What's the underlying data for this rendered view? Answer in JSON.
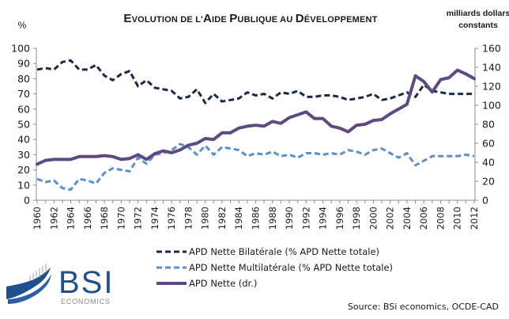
{
  "chart_data": {
    "type": "line",
    "title": "Evolution de l'Aide Publique au Développement",
    "ylabel_left": "%",
    "ylabel_right": "milliards dollars constants",
    "ylabel_right_lines": [
      "milliards dollars",
      "constants"
    ],
    "ylim_left": [
      0,
      100
    ],
    "ylim_right": [
      0,
      160
    ],
    "yticks_left": [
      0,
      10,
      20,
      30,
      40,
      50,
      60,
      70,
      80,
      90,
      100
    ],
    "yticks_right": [
      0,
      20,
      40,
      60,
      80,
      100,
      120,
      140,
      160
    ],
    "xtick_labels": [
      "1960",
      "1962",
      "1964",
      "1966",
      "1968",
      "1970",
      "1972",
      "1974",
      "1976",
      "1978",
      "1980",
      "1982",
      "1984",
      "1986",
      "1988",
      "1990",
      "1992",
      "1994",
      "1996",
      "1998",
      "2000",
      "2002",
      "2004",
      "2006",
      "2008",
      "2010",
      "2012"
    ],
    "grid": false,
    "legend_position": "bottom-center",
    "x": [
      1960,
      1961,
      1962,
      1963,
      1964,
      1965,
      1966,
      1967,
      1968,
      1969,
      1970,
      1971,
      1972,
      1973,
      1974,
      1975,
      1976,
      1977,
      1978,
      1979,
      1980,
      1981,
      1982,
      1983,
      1984,
      1985,
      1986,
      1987,
      1988,
      1989,
      1990,
      1991,
      1992,
      1993,
      1994,
      1995,
      1996,
      1997,
      1998,
      1999,
      2000,
      2001,
      2002,
      2003,
      2004,
      2005,
      2006,
      2007,
      2008,
      2009,
      2010,
      2011,
      2012
    ],
    "series": [
      {
        "name": "APD Nette Bilatérale (% APD Nette totale)",
        "axis": "left",
        "style": "dashed",
        "color": "#1b2a44",
        "values": [
          86,
          87,
          86,
          91,
          92,
          86,
          86,
          89,
          82,
          79,
          83,
          85,
          75,
          79,
          74,
          73,
          72,
          67,
          68,
          73,
          64,
          70,
          65,
          66,
          67,
          71,
          69,
          70,
          67,
          71,
          70,
          72,
          68,
          68,
          69,
          69,
          68,
          66,
          67,
          68,
          70,
          66,
          67,
          69,
          71,
          68,
          76,
          72,
          71,
          70,
          70,
          70,
          70
        ]
      },
      {
        "name": "APD Nette Multilatérale (% APD Nette totale)",
        "axis": "left",
        "style": "dashed",
        "color": "#5b8fd0",
        "values": [
          14,
          12,
          13,
          8,
          7,
          14,
          13,
          11,
          18,
          21,
          20,
          19,
          28,
          24,
          30,
          31,
          33,
          37,
          35,
          30,
          36,
          30,
          35,
          34,
          33,
          29,
          31,
          30,
          32,
          29,
          30,
          28,
          31,
          31,
          30,
          31,
          30,
          33,
          32,
          30,
          33,
          34,
          31,
          28,
          31,
          23,
          26,
          29,
          29,
          29,
          29,
          30,
          29
        ]
      },
      {
        "name": "APD Nette (dr.)",
        "axis": "right",
        "style": "solid",
        "color": "#5e4a82",
        "values": [
          38,
          42,
          43,
          43,
          43,
          46,
          46,
          46,
          47,
          46,
          43,
          44,
          48,
          43,
          49,
          52,
          50,
          53,
          58,
          60,
          65,
          64,
          71,
          71,
          76,
          78,
          79,
          78,
          83,
          81,
          87,
          90,
          93,
          86,
          86,
          78,
          76,
          72,
          79,
          80,
          84,
          85,
          91,
          96,
          101,
          131,
          125,
          114,
          127,
          129,
          137,
          133,
          128
        ]
      }
    ]
  },
  "legend": [
    {
      "label": "APD Nette Bilatérale (% APD Nette totale)"
    },
    {
      "label": "APD Nette Multilatérale (% APD Nette totale)"
    },
    {
      "label": "APD Nette (dr.)"
    }
  ],
  "title_parts": [
    {
      "cap": "E",
      "rest": "VOLUTION DE L'"
    },
    {
      "cap": "A",
      "rest": "IDE "
    },
    {
      "cap": "P",
      "rest": "UBLIQUE AU "
    },
    {
      "cap": "D",
      "rest": "ÉVELOPPEMENT"
    }
  ],
  "logo": {
    "main": "BSI",
    "sub": "ECONOMICS"
  },
  "source": "Source: BSi economics, OCDE-CAD"
}
